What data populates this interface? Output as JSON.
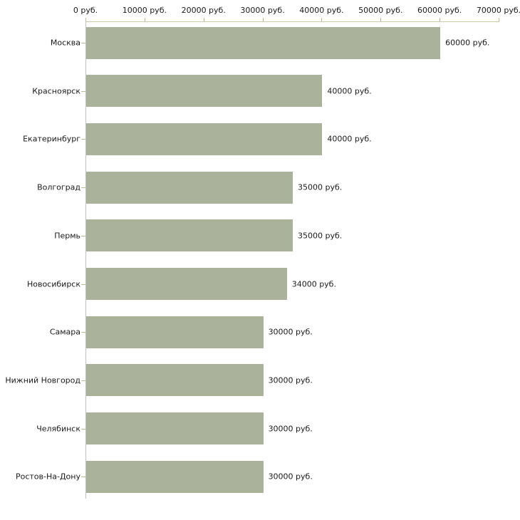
{
  "chart_data": {
    "type": "bar",
    "orientation": "horizontal",
    "title": "",
    "xlabel": "",
    "ylabel": "",
    "categories": [
      "Москва",
      "Красноярск",
      "Екатеринбург",
      "Волгоград",
      "Пермь",
      "Новосибирск",
      "Самара",
      "Нижний Новгород",
      "Челябинск",
      "Ростов-На-Дону"
    ],
    "values": [
      60000,
      40000,
      40000,
      35000,
      35000,
      34000,
      30000,
      30000,
      30000,
      30000
    ],
    "value_labels": [
      "60000 руб.",
      "40000 руб.",
      "40000 руб.",
      "35000 руб.",
      "35000 руб.",
      "34000 руб.",
      "30000 руб.",
      "30000 руб.",
      "30000 руб.",
      "30000 руб."
    ],
    "x_ticks": [
      0,
      10000,
      20000,
      30000,
      40000,
      50000,
      60000,
      70000
    ],
    "x_tick_labels": [
      "0 руб.",
      "10000 руб.",
      "20000 руб.",
      "30000 руб.",
      "40000 руб.",
      "50000 руб.",
      "60000 руб.",
      "70000 руб."
    ],
    "xlim": [
      0,
      70000
    ],
    "unit": "руб.",
    "grid": false,
    "legend": "none",
    "colors": {
      "bar": "#abb29b",
      "axis_line": "#c9c9a6",
      "axis_tick": "#b9b994",
      "category_axis_line": "#c0c0c0",
      "text": "#1a1a1a",
      "background": "#ffffff"
    }
  }
}
